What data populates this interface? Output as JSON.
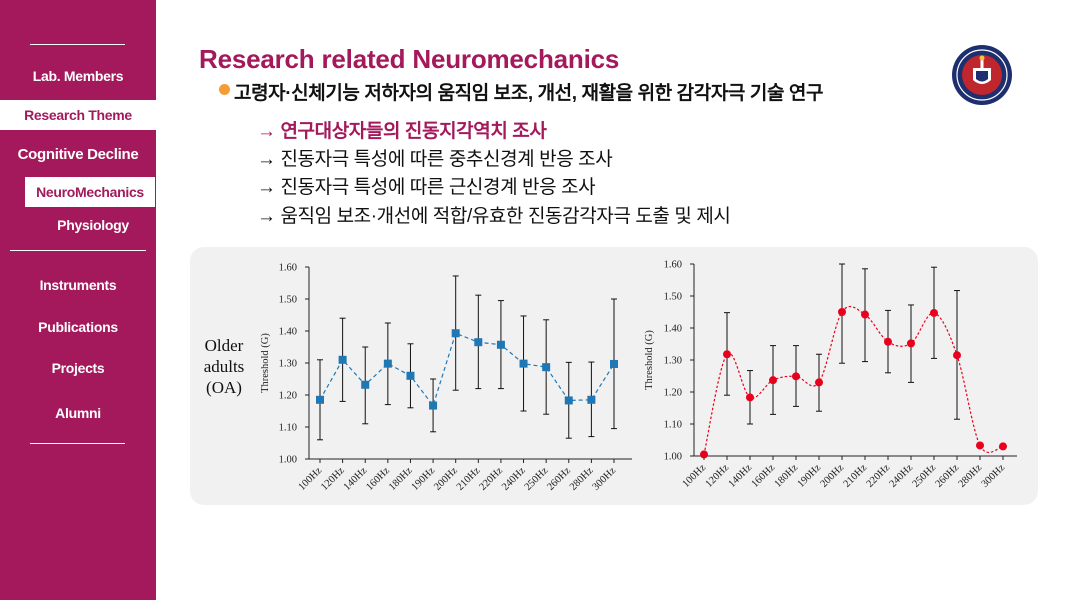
{
  "sidebar": {
    "items": [
      {
        "label": "Lab. Members",
        "active": false
      },
      {
        "label": "Research Theme",
        "active": true
      },
      {
        "label": "Cognitive Decline",
        "active": false
      },
      {
        "label": "NeuroMechanics",
        "active": true
      },
      {
        "label": "Physiology",
        "active": false
      },
      {
        "label": "Instruments",
        "active": false
      },
      {
        "label": "Publications",
        "active": false
      },
      {
        "label": "Projects",
        "active": false
      },
      {
        "label": "Alumni",
        "active": false
      }
    ]
  },
  "colors": {
    "brand": "#a3195b",
    "bullet": "#f59c3a",
    "series_left": "#1f77b4",
    "series_right": "#e8001c"
  },
  "main": {
    "title": "Research related Neuromechanics",
    "bullet": "고령자·신체기능 저하자의 움직임 보조, 개선, 재활을 위한 감각자극 기술 연구",
    "subitems": [
      "→ 연구대상자들의 진동지각역치 조사",
      "→ 진동자극 특성에 따른 중추신경계 반응 조사",
      "→ 진동자극 특성에 따른 근신경계 반응 조사",
      "→ 움직임 보조·개선에 적합/유효한 진동감각자극 도출 및 제시"
    ],
    "group_label": {
      "line1": "Older",
      "line2": "adults",
      "line3": "(OA)"
    }
  },
  "chart_data": [
    {
      "type": "line",
      "style": "dashed line with square markers and error bars",
      "xlabel": "",
      "ylabel": "Threshold (G)",
      "ylim": [
        1.0,
        1.6
      ],
      "yticks": [
        "1.00",
        "1.10",
        "1.20",
        "1.30",
        "1.40",
        "1.50",
        "1.60"
      ],
      "categories": [
        "100Hz",
        "120Hz",
        "140Hz",
        "160Hz",
        "180Hz",
        "190Hz",
        "200Hz",
        "210Hz",
        "220Hz",
        "240Hz",
        "250Hz",
        "260Hz",
        "280Hz",
        "300Hz"
      ],
      "series": [
        {
          "name": "OA",
          "values": [
            1.185,
            1.31,
            1.232,
            1.298,
            1.26,
            1.167,
            1.393,
            1.365,
            1.357,
            1.298,
            1.287,
            1.183,
            1.185,
            1.297
          ],
          "err_low": [
            1.06,
            1.18,
            1.11,
            1.17,
            1.16,
            1.085,
            1.215,
            1.22,
            1.22,
            1.15,
            1.14,
            1.065,
            1.07,
            1.095
          ],
          "err_high": [
            1.31,
            1.44,
            1.35,
            1.425,
            1.36,
            1.25,
            1.572,
            1.512,
            1.495,
            1.447,
            1.435,
            1.302,
            1.303,
            1.5
          ]
        }
      ]
    },
    {
      "type": "line",
      "style": "smoothed dotted line with circle markers and error bars",
      "xlabel": "",
      "ylabel": "Threshold (G)",
      "ylim": [
        1.0,
        1.6
      ],
      "yticks": [
        "1.00",
        "1.10",
        "1.20",
        "1.30",
        "1.40",
        "1.50",
        "1.60"
      ],
      "categories": [
        "100Hz",
        "120Hz",
        "140Hz",
        "160Hz",
        "180Hz",
        "190Hz",
        "200Hz",
        "210Hz",
        "220Hz",
        "240Hz",
        "250Hz",
        "260Hz",
        "280Hz",
        "300Hz"
      ],
      "series": [
        {
          "name": "OA",
          "values": [
            1.005,
            1.318,
            1.183,
            1.237,
            1.249,
            1.23,
            1.45,
            1.442,
            1.357,
            1.352,
            1.447,
            1.315,
            1.033,
            1.03
          ],
          "err_low": [
            1.005,
            1.19,
            1.1,
            1.13,
            1.155,
            1.14,
            1.29,
            1.295,
            1.26,
            1.23,
            1.305,
            1.115,
            1.033,
            1.03
          ],
          "err_high": [
            1.005,
            1.448,
            1.267,
            1.345,
            1.345,
            1.318,
            1.6,
            1.585,
            1.455,
            1.472,
            1.59,
            1.517,
            1.033,
            1.03
          ]
        }
      ]
    }
  ]
}
